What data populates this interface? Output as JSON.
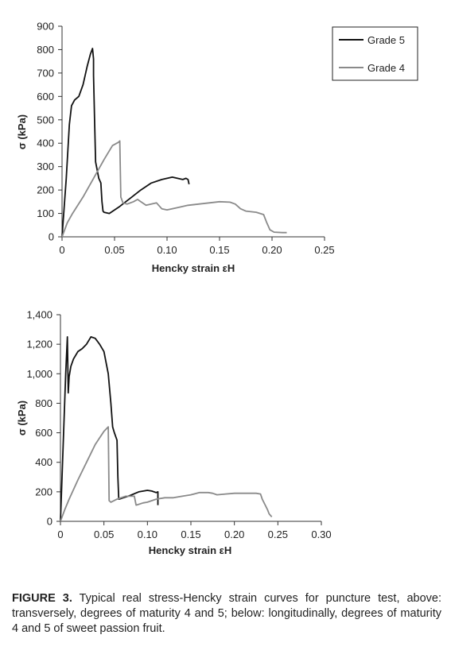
{
  "chart_data": [
    {
      "type": "line",
      "xlabel": "Hencky strain εH",
      "ylabel": "σ (kPa)",
      "xlim": [
        0,
        0.25
      ],
      "ylim": [
        0,
        900
      ],
      "xticks": [
        0,
        0.05,
        0.1,
        0.15,
        0.2,
        0.25
      ],
      "xtick_labels": [
        "0",
        "0.05",
        "0.10",
        "0.15",
        "0.20",
        "0.25"
      ],
      "yticks": [
        0,
        100,
        200,
        300,
        400,
        500,
        600,
        700,
        800,
        900
      ],
      "ytick_labels": [
        "0",
        "100",
        "200",
        "300",
        "400",
        "500",
        "600",
        "700",
        "800",
        "900"
      ],
      "grid": false,
      "legend": "top-right",
      "series": [
        {
          "name": "Grade 5",
          "color": "#111111",
          "x": [
            0,
            0.004,
            0.007,
            0.009,
            0.012,
            0.016,
            0.02,
            0.024,
            0.027,
            0.029,
            0.03,
            0.03,
            0.031,
            0.032,
            0.035,
            0.037,
            0.038,
            0.039,
            0.04,
            0.045,
            0.055,
            0.065,
            0.075,
            0.085,
            0.095,
            0.1,
            0.105,
            0.11,
            0.115,
            0.118,
            0.12,
            0.121
          ],
          "y": [
            0,
            250,
            480,
            560,
            585,
            600,
            650,
            730,
            780,
            805,
            760,
            690,
            500,
            320,
            250,
            230,
            150,
            110,
            105,
            100,
            130,
            165,
            200,
            230,
            245,
            250,
            255,
            250,
            245,
            250,
            245,
            225
          ]
        },
        {
          "name": "Grade 4",
          "color": "#8a8a8a",
          "x": [
            0,
            0.005,
            0.01,
            0.02,
            0.03,
            0.04,
            0.048,
            0.054,
            0.055,
            0.056,
            0.058,
            0.062,
            0.068,
            0.072,
            0.075,
            0.08,
            0.085,
            0.09,
            0.095,
            0.1,
            0.11,
            0.12,
            0.13,
            0.14,
            0.15,
            0.16,
            0.165,
            0.17,
            0.175,
            0.185,
            0.192,
            0.195,
            0.198,
            0.202,
            0.21,
            0.214
          ],
          "y": [
            0,
            60,
            100,
            170,
            250,
            330,
            390,
            405,
            410,
            170,
            145,
            140,
            150,
            160,
            150,
            135,
            140,
            145,
            120,
            115,
            125,
            135,
            140,
            145,
            150,
            148,
            140,
            120,
            110,
            105,
            95,
            60,
            30,
            20,
            18,
            18
          ]
        }
      ]
    },
    {
      "type": "line",
      "xlabel": "Hencky strain εH",
      "ylabel": "σ (kPa)",
      "xlim": [
        0,
        0.3
      ],
      "ylim": [
        0,
        1400
      ],
      "xticks": [
        0,
        0.05,
        0.1,
        0.15,
        0.2,
        0.25,
        0.3
      ],
      "xtick_labels": [
        "0",
        "0.05",
        "0.10",
        "0.15",
        "0.20",
        "0.25",
        "0.30"
      ],
      "yticks": [
        0,
        200,
        400,
        600,
        800,
        1000,
        1200,
        1400
      ],
      "ytick_labels": [
        "0",
        "200",
        "400",
        "600",
        "800",
        "1,000",
        "1,200",
        "1,400"
      ],
      "grid": false,
      "series": [
        {
          "name": "Grade 5",
          "color": "#111111",
          "x": [
            0,
            0.003,
            0.006,
            0.008,
            0.009,
            0.01,
            0.012,
            0.015,
            0.02,
            0.025,
            0.03,
            0.035,
            0.04,
            0.045,
            0.05,
            0.055,
            0.058,
            0.06,
            0.061,
            0.062,
            0.065,
            0.066,
            0.067,
            0.07,
            0.08,
            0.09,
            0.1,
            0.105,
            0.11,
            0.112,
            0.112
          ],
          "y": [
            0,
            500,
            1000,
            1250,
            870,
            980,
            1050,
            1100,
            1150,
            1170,
            1200,
            1250,
            1240,
            1200,
            1150,
            1000,
            800,
            640,
            620,
            600,
            550,
            300,
            150,
            155,
            175,
            200,
            210,
            205,
            195,
            200,
            110
          ]
        },
        {
          "name": "Grade 4",
          "color": "#8a8a8a",
          "x": [
            0,
            0.005,
            0.01,
            0.02,
            0.03,
            0.04,
            0.05,
            0.055,
            0.056,
            0.058,
            0.065,
            0.075,
            0.085,
            0.087,
            0.09,
            0.095,
            0.1,
            0.11,
            0.12,
            0.13,
            0.14,
            0.15,
            0.16,
            0.17,
            0.175,
            0.18,
            0.19,
            0.2,
            0.21,
            0.22,
            0.225,
            0.23,
            0.232,
            0.238,
            0.24,
            0.243
          ],
          "y": [
            0,
            80,
            150,
            280,
            400,
            520,
            610,
            640,
            140,
            130,
            150,
            170,
            170,
            110,
            115,
            125,
            130,
            150,
            160,
            160,
            170,
            180,
            195,
            195,
            190,
            180,
            185,
            190,
            190,
            190,
            190,
            185,
            150,
            80,
            50,
            30
          ]
        }
      ]
    }
  ],
  "caption": {
    "label": "FIGURE 3.",
    "text": " Typical real stress-Hencky strain curves for puncture test, above: transversely, degrees of maturity 4 and 5; below: longitudinally, degrees of maturity 4 and 5 of sweet passion fruit."
  }
}
